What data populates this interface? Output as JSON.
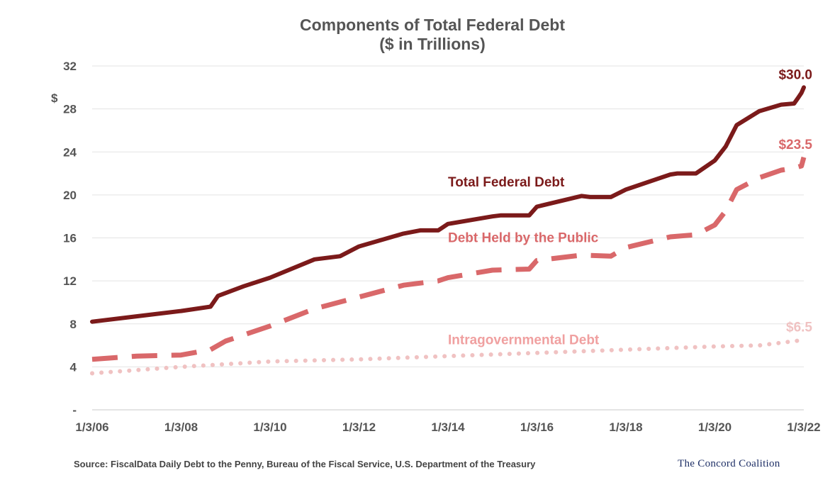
{
  "chart_data": {
    "type": "line",
    "title": "Components of Total Federal Debt",
    "subtitle": "($ in Trillions)",
    "ylabel": "$",
    "ylim": [
      0,
      32
    ],
    "yticks": [
      0,
      4,
      8,
      12,
      16,
      20,
      24,
      28,
      32
    ],
    "ytick_labels": [
      "-",
      "4",
      "8",
      "12",
      "16",
      "20",
      "24",
      "28",
      "32"
    ],
    "xlim": [
      "2006-01-03",
      "2022-01-03"
    ],
    "xtick_labels": [
      "1/3/06",
      "1/3/08",
      "1/3/10",
      "1/3/12",
      "1/3/14",
      "1/3/16",
      "1/3/18",
      "1/3/20",
      "1/3/22"
    ],
    "grid": true,
    "series": [
      {
        "name": "Total Federal Debt",
        "style": "solid",
        "color": "#7b1a1a",
        "end_label": "$30.0",
        "points": [
          [
            "2006-01-03",
            8.2
          ],
          [
            "2007-01-03",
            8.7
          ],
          [
            "2008-01-03",
            9.2
          ],
          [
            "2008-09-01",
            9.6
          ],
          [
            "2008-11-01",
            10.6
          ],
          [
            "2009-06-01",
            11.5
          ],
          [
            "2010-01-03",
            12.3
          ],
          [
            "2011-01-03",
            14.0
          ],
          [
            "2011-08-01",
            14.3
          ],
          [
            "2012-01-03",
            15.2
          ],
          [
            "2013-01-03",
            16.4
          ],
          [
            "2013-05-20",
            16.7
          ],
          [
            "2013-10-15",
            16.7
          ],
          [
            "2014-01-03",
            17.3
          ],
          [
            "2015-01-03",
            18.0
          ],
          [
            "2015-03-15",
            18.1
          ],
          [
            "2015-11-01",
            18.1
          ],
          [
            "2016-01-03",
            18.9
          ],
          [
            "2017-01-03",
            19.9
          ],
          [
            "2017-03-15",
            19.8
          ],
          [
            "2017-09-01",
            19.8
          ],
          [
            "2018-01-03",
            20.5
          ],
          [
            "2019-01-03",
            21.9
          ],
          [
            "2019-03-01",
            22.0
          ],
          [
            "2019-08-01",
            22.0
          ],
          [
            "2020-01-03",
            23.2
          ],
          [
            "2020-04-01",
            24.5
          ],
          [
            "2020-07-01",
            26.5
          ],
          [
            "2021-01-03",
            27.8
          ],
          [
            "2021-07-01",
            28.4
          ],
          [
            "2021-10-15",
            28.5
          ],
          [
            "2021-11-15",
            29.0
          ],
          [
            "2021-12-15",
            29.5
          ],
          [
            "2022-01-03",
            30.0
          ]
        ]
      },
      {
        "name": "Debt Held by the Public",
        "style": "dashed",
        "color": "#d9686a",
        "end_label": "$23.5",
        "points": [
          [
            "2006-01-03",
            4.7
          ],
          [
            "2007-01-03",
            5.0
          ],
          [
            "2008-01-03",
            5.1
          ],
          [
            "2008-09-01",
            5.6
          ],
          [
            "2009-01-03",
            6.4
          ],
          [
            "2010-01-03",
            7.8
          ],
          [
            "2011-01-03",
            9.4
          ],
          [
            "2012-01-03",
            10.5
          ],
          [
            "2013-01-03",
            11.6
          ],
          [
            "2013-10-15",
            12.0
          ],
          [
            "2014-01-03",
            12.3
          ],
          [
            "2015-01-03",
            13.0
          ],
          [
            "2015-11-01",
            13.1
          ],
          [
            "2016-01-03",
            13.9
          ],
          [
            "2017-01-03",
            14.4
          ],
          [
            "2017-09-01",
            14.3
          ],
          [
            "2018-01-03",
            15.1
          ],
          [
            "2019-01-03",
            16.1
          ],
          [
            "2019-08-01",
            16.3
          ],
          [
            "2020-01-03",
            17.2
          ],
          [
            "2020-04-01",
            18.5
          ],
          [
            "2020-07-01",
            20.5
          ],
          [
            "2021-01-03",
            21.6
          ],
          [
            "2021-07-01",
            22.3
          ],
          [
            "2021-10-15",
            22.5
          ],
          [
            "2021-12-15",
            22.7
          ],
          [
            "2022-01-03",
            23.5
          ]
        ]
      },
      {
        "name": "Intragovernmental Debt",
        "style": "dotted",
        "color": "#f0c2c2",
        "end_label": "$6.5",
        "points": [
          [
            "2006-01-03",
            3.4
          ],
          [
            "2008-01-03",
            4.0
          ],
          [
            "2010-01-03",
            4.5
          ],
          [
            "2012-01-03",
            4.7
          ],
          [
            "2014-01-03",
            5.0
          ],
          [
            "2016-01-03",
            5.3
          ],
          [
            "2018-01-03",
            5.6
          ],
          [
            "2020-01-03",
            5.9
          ],
          [
            "2021-01-03",
            6.0
          ],
          [
            "2022-01-03",
            6.5
          ]
        ]
      }
    ],
    "annotations": [
      {
        "text": "Total Federal Debt",
        "color": "#7b1a1a",
        "x": "2014-01-03",
        "y": 20.8
      },
      {
        "text": "Debt Held by the Public",
        "color": "#d9686a",
        "x": "2014-01-03",
        "y": 15.6
      },
      {
        "text": "Intragovernmental Debt",
        "color": "#f0a0a0",
        "x": "2014-01-03",
        "y": 6.1
      }
    ]
  },
  "footer": {
    "source": "Source: FiscalData Daily Debt to the Penny, Bureau of the Fiscal Service, U.S. Department of the Treasury",
    "logo_text": "The Concord Coalition"
  }
}
